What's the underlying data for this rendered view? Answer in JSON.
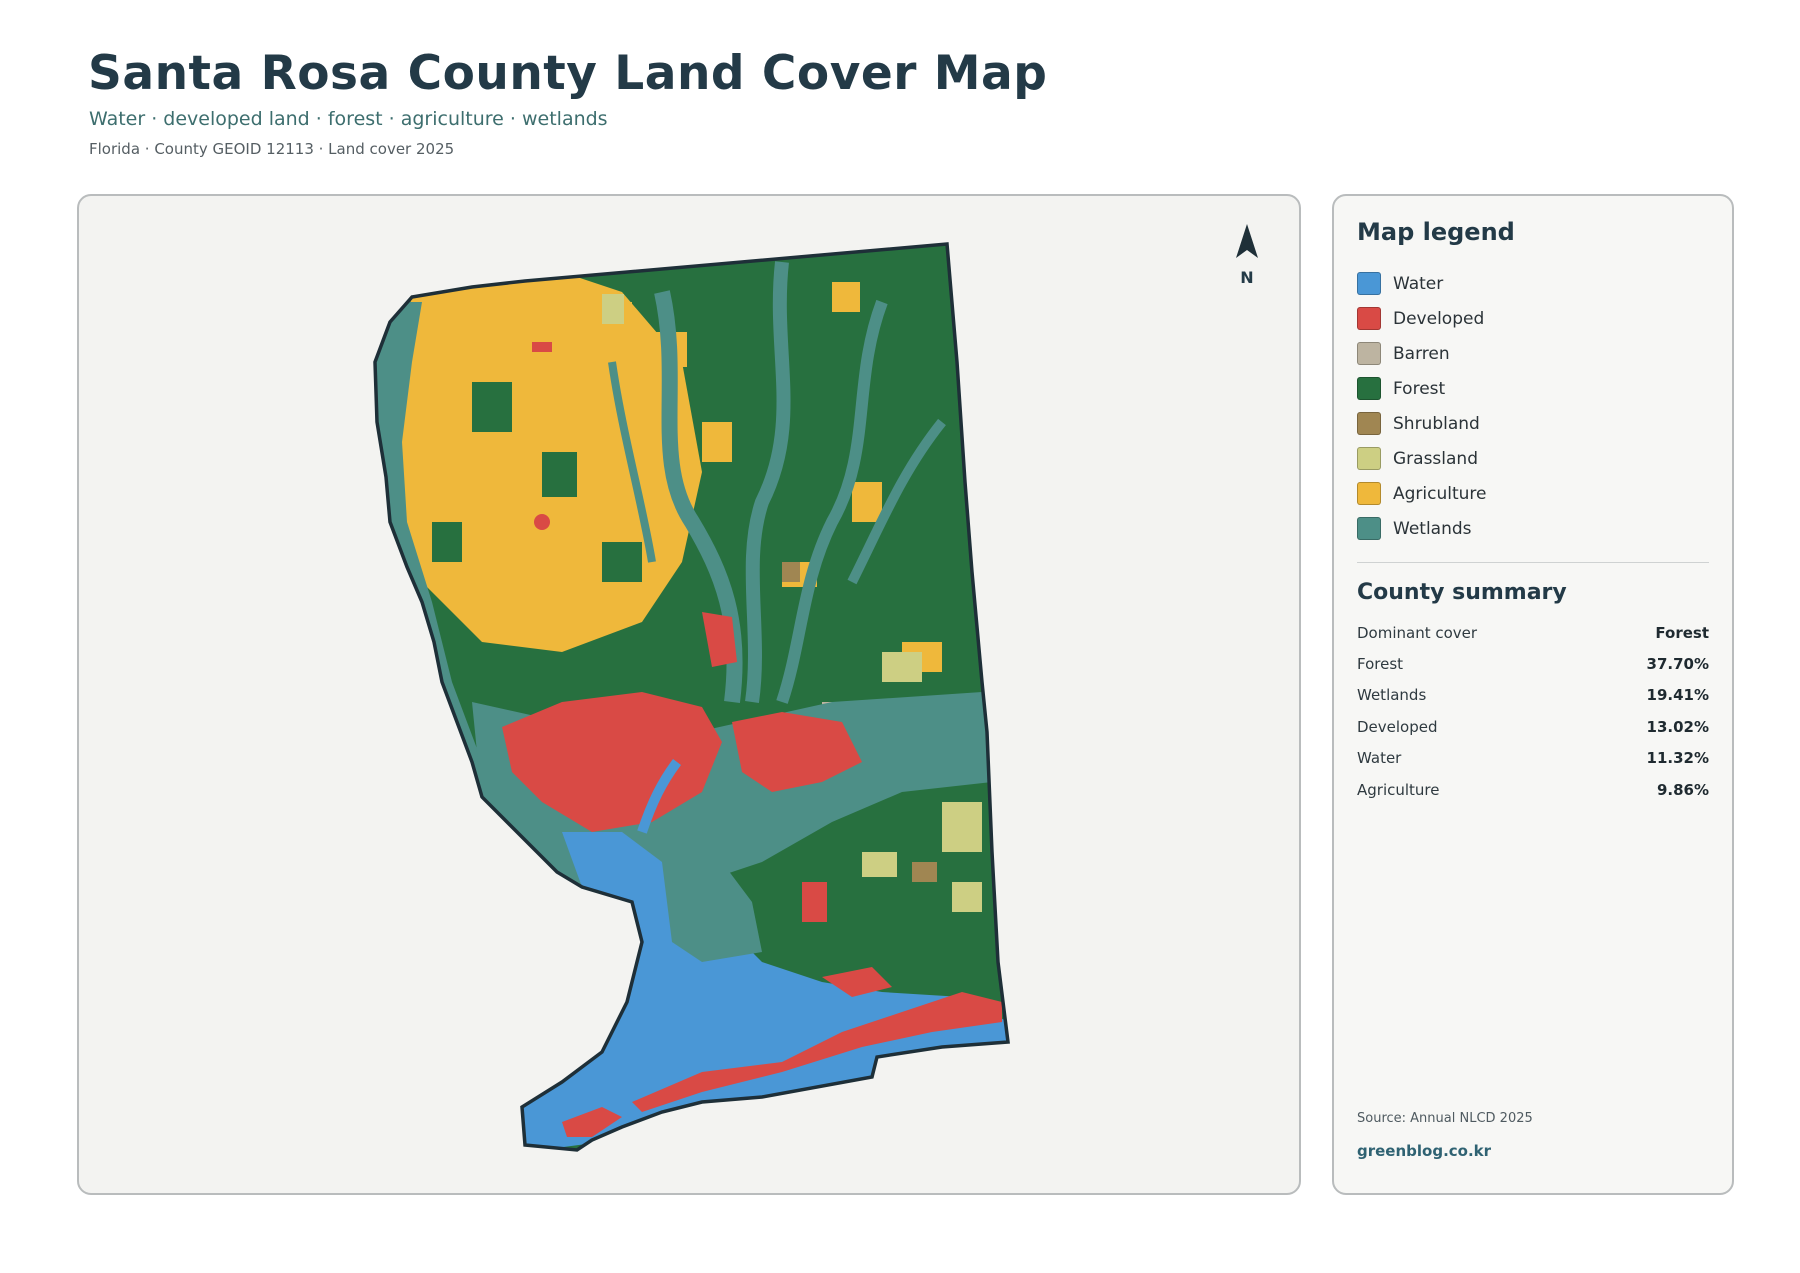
{
  "header": {
    "title": "Santa Rosa County Land Cover Map",
    "subtitle": "Water · developed land · forest · agriculture · wetlands",
    "meta": "Florida · County GEOID 12113 · Land cover 2025"
  },
  "map": {
    "north_label": "N",
    "colors": {
      "Water": "#4a97d6",
      "Developed": "#d94a45",
      "Barren": "#bdb4a1",
      "Forest": "#27703f",
      "Shrubland": "#a08652",
      "Grassland": "#cdcf83",
      "Agriculture": "#efb83b",
      "Wetlands": "#4d8f87",
      "Outline": "#1e2f38"
    }
  },
  "legend": {
    "title": "Map legend",
    "items": [
      {
        "label": "Water",
        "color": "#4a97d6"
      },
      {
        "label": "Developed",
        "color": "#d94a45"
      },
      {
        "label": "Barren",
        "color": "#bdb4a1"
      },
      {
        "label": "Forest",
        "color": "#27703f"
      },
      {
        "label": "Shrubland",
        "color": "#a08652"
      },
      {
        "label": "Grassland",
        "color": "#cdcf83"
      },
      {
        "label": "Agriculture",
        "color": "#efb83b"
      },
      {
        "label": "Wetlands",
        "color": "#4d8f87"
      }
    ]
  },
  "summary": {
    "title": "County summary",
    "rows": [
      {
        "key": "Dominant cover",
        "value": "Forest"
      },
      {
        "key": "Forest",
        "value": "37.70%"
      },
      {
        "key": "Wetlands",
        "value": "19.41%"
      },
      {
        "key": "Developed",
        "value": "13.02%"
      },
      {
        "key": "Water",
        "value": "11.32%"
      },
      {
        "key": "Agriculture",
        "value": "9.86%"
      }
    ]
  },
  "footer": {
    "source": "Source: Annual NLCD 2025",
    "brand": "greenblog.co.kr"
  }
}
